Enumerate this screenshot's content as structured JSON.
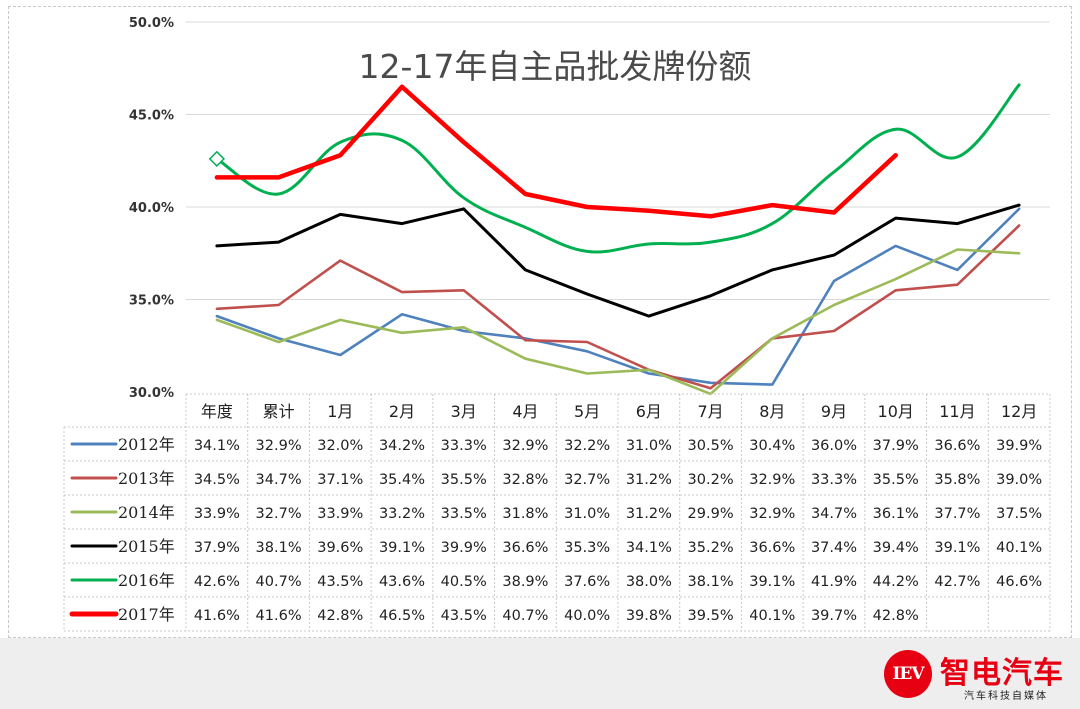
{
  "chart_data": {
    "type": "line",
    "title": "12-17年自主品批发牌份额",
    "xlabel": "",
    "ylabel": "",
    "categories": [
      "年度",
      "累计",
      "1月",
      "2月",
      "3月",
      "4月",
      "5月",
      "6月",
      "7月",
      "8月",
      "9月",
      "10月",
      "11月",
      "12月"
    ],
    "ylim": [
      30,
      50
    ],
    "yticks": [
      "30.0%",
      "35.0%",
      "40.0%",
      "45.0%",
      "50.0%"
    ],
    "grid": true,
    "legend": "bottom-table",
    "series": [
      {
        "name": "2012年",
        "color": "#4f81bd",
        "values": [
          34.1,
          32.9,
          32.0,
          34.2,
          33.3,
          32.9,
          32.2,
          31.0,
          30.5,
          30.4,
          36.0,
          37.9,
          36.6,
          39.9
        ],
        "labels": [
          "34.1%",
          "32.9%",
          "32.0%",
          "34.2%",
          "33.3%",
          "32.9%",
          "32.2%",
          "31.0%",
          "30.5%",
          "30.4%",
          "36.0%",
          "37.9%",
          "36.6%",
          "39.9%"
        ]
      },
      {
        "name": "2013年",
        "color": "#c0504d",
        "values": [
          34.5,
          34.7,
          37.1,
          35.4,
          35.5,
          32.8,
          32.7,
          31.2,
          30.2,
          32.9,
          33.3,
          35.5,
          35.8,
          39.0
        ],
        "labels": [
          "34.5%",
          "34.7%",
          "37.1%",
          "35.4%",
          "35.5%",
          "32.8%",
          "32.7%",
          "31.2%",
          "30.2%",
          "32.9%",
          "33.3%",
          "35.5%",
          "35.8%",
          "39.0%"
        ]
      },
      {
        "name": "2014年",
        "color": "#9bbb59",
        "values": [
          33.9,
          32.7,
          33.9,
          33.2,
          33.5,
          31.8,
          31.0,
          31.2,
          29.9,
          32.9,
          34.7,
          36.1,
          37.7,
          37.5
        ],
        "labels": [
          "33.9%",
          "32.7%",
          "33.9%",
          "33.2%",
          "33.5%",
          "31.8%",
          "31.0%",
          "31.2%",
          "29.9%",
          "32.9%",
          "34.7%",
          "36.1%",
          "37.7%",
          "37.5%"
        ]
      },
      {
        "name": "2015年",
        "color": "#000000",
        "values": [
          37.9,
          38.1,
          39.6,
          39.1,
          39.9,
          36.6,
          35.3,
          34.1,
          35.2,
          36.6,
          37.4,
          39.4,
          39.1,
          40.1
        ],
        "labels": [
          "37.9%",
          "38.1%",
          "39.6%",
          "39.1%",
          "39.9%",
          "36.6%",
          "35.3%",
          "34.1%",
          "35.2%",
          "36.6%",
          "37.4%",
          "39.4%",
          "39.1%",
          "40.1%"
        ]
      },
      {
        "name": "2016年",
        "color": "#00b050",
        "values": [
          42.6,
          40.7,
          43.5,
          43.6,
          40.5,
          38.9,
          37.6,
          38.0,
          38.1,
          39.1,
          41.9,
          44.2,
          42.7,
          46.6
        ],
        "labels": [
          "42.6%",
          "40.7%",
          "43.5%",
          "43.6%",
          "40.5%",
          "38.9%",
          "37.6%",
          "38.0%",
          "38.1%",
          "39.1%",
          "41.9%",
          "44.2%",
          "42.7%",
          "46.6%"
        ]
      },
      {
        "name": "2017年",
        "color": "#ff0000",
        "values": [
          41.6,
          41.6,
          42.8,
          46.5,
          43.5,
          40.7,
          40.0,
          39.8,
          39.5,
          40.1,
          39.7,
          42.8,
          null,
          null
        ],
        "labels": [
          "41.6%",
          "41.6%",
          "42.8%",
          "46.5%",
          "43.5%",
          "40.7%",
          "40.0%",
          "39.8%",
          "39.5%",
          "40.1%",
          "39.7%",
          "42.8%",
          "",
          ""
        ]
      }
    ]
  },
  "brand": {
    "logo_text": "IEV",
    "name": "智电汽车",
    "slogan": "汽车科技自媒体"
  }
}
